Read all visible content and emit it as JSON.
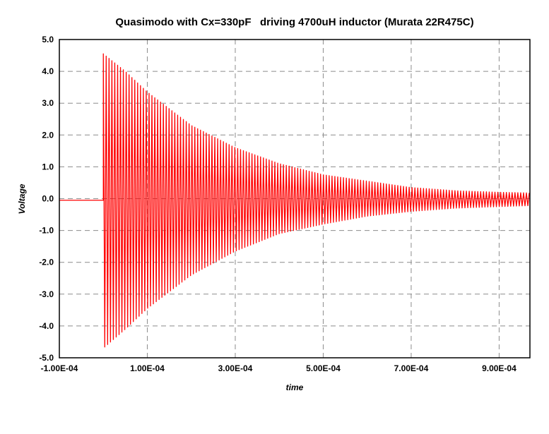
{
  "chart_data": {
    "type": "line",
    "title": "Quasimodo with Cx=330pF   driving 4700uH inductor (Murata 22R475C)",
    "xlabel": "time",
    "ylabel": "Voltage",
    "xlim": [
      -0.0001,
      0.00097
    ],
    "ylim": [
      -5.0,
      5.0
    ],
    "x_ticks": [
      -0.0001,
      0.0001,
      0.0003,
      0.0005,
      0.0007,
      0.0009
    ],
    "x_tick_labels": [
      "-1.00E-04",
      "1.00E-04",
      "3.00E-04",
      "5.00E-04",
      "7.00E-04",
      "9.00E-04"
    ],
    "y_ticks": [
      5.0,
      4.0,
      3.0,
      2.0,
      1.0,
      0.0,
      -1.0,
      -2.0,
      -3.0,
      -4.0,
      -5.0
    ],
    "y_tick_labels": [
      "5.0",
      "4.0",
      "3.0",
      "2.0",
      "1.0",
      "0.0",
      "-1.0",
      "-2.0",
      "-3.0",
      "-4.0",
      "-5.0"
    ],
    "grid": true,
    "legend": "none",
    "series": [
      {
        "color": "#ff0000",
        "description_points": {
          "x": [
            -0.0001,
            0.0,
            0.0,
            5e-05,
            0.0001,
            0.0002,
            0.0003,
            0.0004,
            0.0005,
            0.0006,
            0.0007,
            0.0008,
            0.0009,
            0.00097
          ],
          "upper_envelope": [
            -0.05,
            -0.05,
            4.55,
            4.0,
            3.35,
            2.3,
            1.6,
            1.1,
            0.75,
            0.55,
            0.35,
            0.25,
            0.2,
            0.18
          ],
          "lower_envelope": [
            -0.05,
            -0.05,
            -4.7,
            -4.1,
            -3.45,
            -2.4,
            -1.65,
            -1.1,
            -0.8,
            -0.55,
            -0.4,
            -0.3,
            -0.25,
            -0.22
          ]
        },
        "oscillation_period": 6.5e-06
      }
    ]
  }
}
